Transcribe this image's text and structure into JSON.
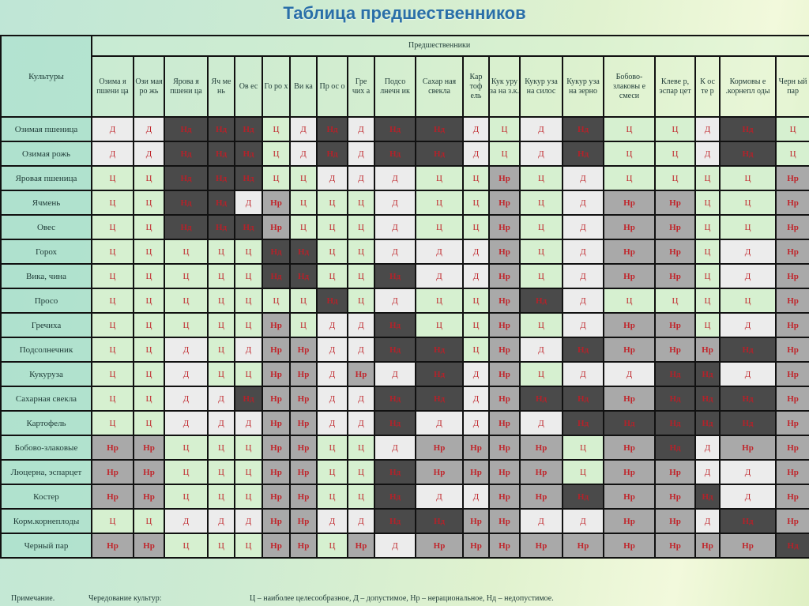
{
  "title": "Таблица предшественников",
  "header": {
    "row_label_header": "Культуры",
    "group_header": "Предшественники",
    "columns": [
      "Озима я пшени ца",
      "Ози мая ро жь",
      "Ярова я пшени ца",
      "Яч ме нь",
      "Ов ес",
      "Го ро х",
      "Ви ка",
      "Пр ос о",
      "Гре чих а",
      "Подсо лнечн ик",
      "Сахар ная свекла",
      "Кар тоф ель",
      "Кук уру за на з.к.",
      "Кукур уза на силос",
      "Кукур уза на зерно",
      "Бобово- злаковы е смеси",
      "Клеве р, эспар цет",
      "К ос те р",
      "Кормовы е .корнепл оды",
      "Черн ый пар"
    ]
  },
  "rows": [
    {
      "crop": "Озимая пшеница",
      "cells": [
        "Д",
        "Д",
        "Нд",
        "Нд",
        "Нд",
        "Ц",
        "Д",
        "Нд",
        "Д",
        "Нд",
        "Нд",
        "Д",
        "Ц",
        "Д",
        "Нд",
        "Ц",
        "Ц",
        "Д",
        "Нд",
        "Ц"
      ]
    },
    {
      "crop": "Озимая рожь",
      "cells": [
        "Д",
        "Д",
        "Нд",
        "Нд",
        "Нд",
        "Ц",
        "Д",
        "Нд",
        "Д",
        "Нд",
        "Нд",
        "Д",
        "Ц",
        "Д",
        "Нд",
        "Ц",
        "Ц",
        "Д",
        "Нд",
        "Ц"
      ]
    },
    {
      "crop": "Яровая пшеница",
      "cells": [
        "Ц",
        "Ц",
        "Нд",
        "Нд",
        "Нд",
        "Ц",
        "Ц",
        "Д",
        "Д",
        "Д",
        "Ц",
        "Ц",
        "Нр",
        "Ц",
        "Д",
        "Ц",
        "Ц",
        "Ц",
        "Ц",
        "Нр"
      ]
    },
    {
      "crop": "Ячмень",
      "cells": [
        "Ц",
        "Ц",
        "Нд",
        "Нд",
        "Д",
        "Нр",
        "Ц",
        "Ц",
        "Ц",
        "Д",
        "Ц",
        "Ц",
        "Нр",
        "Ц",
        "Д",
        "Нр",
        "Нр",
        "Ц",
        "Ц",
        "Нр"
      ]
    },
    {
      "crop": "Овес",
      "cells": [
        "Ц",
        "Ц",
        "Нд",
        "Нд",
        "Нд",
        "Нр",
        "Ц",
        "Ц",
        "Ц",
        "Д",
        "Ц",
        "Ц",
        "Нр",
        "Ц",
        "Д",
        "Нр",
        "Нр",
        "Ц",
        "Ц",
        "Нр"
      ]
    },
    {
      "crop": "Горох",
      "cells": [
        "Ц",
        "Ц",
        "Ц",
        "Ц",
        "Ц",
        "Нд",
        "Нд",
        "Ц",
        "Ц",
        "Д",
        "Д",
        "Д",
        "Нр",
        "Ц",
        "Д",
        "Нр",
        "Нр",
        "Ц",
        "Д",
        "Нр"
      ]
    },
    {
      "crop": "Вика, чина",
      "cells": [
        "Ц",
        "Ц",
        "Ц",
        "Ц",
        "Ц",
        "Нд",
        "Нд",
        "Ц",
        "Ц",
        "Нд",
        "Д",
        "Д",
        "Нр",
        "Ц",
        "Д",
        "Нр",
        "Нр",
        "Ц",
        "Д",
        "Нр"
      ]
    },
    {
      "crop": "Просо",
      "cells": [
        "Ц",
        "Ц",
        "Ц",
        "Ц",
        "Ц",
        "Ц",
        "Ц",
        "Нд",
        "Ц",
        "Д",
        "Ц",
        "Ц",
        "Нр",
        "Нд",
        "Д",
        "Ц",
        "Ц",
        "Ц",
        "Ц",
        "Нр"
      ]
    },
    {
      "crop": "Гречиха",
      "cells": [
        "Ц",
        "Ц",
        "Ц",
        "Ц",
        "Ц",
        "Нр",
        "Ц",
        "Д",
        "Д",
        "Нд",
        "Ц",
        "Ц",
        "Нр",
        "Ц",
        "Д",
        "Нр",
        "Нр",
        "Ц",
        "Д",
        "Нр"
      ]
    },
    {
      "crop": "Подсолнечник",
      "cells": [
        "Ц",
        "Ц",
        "Д",
        "Ц",
        "Д",
        "Нр",
        "Нр",
        "Д",
        "Д",
        "Нд",
        "Нд",
        "Ц",
        "Нр",
        "Д",
        "Нд",
        "Нр",
        "Нр",
        "Нр",
        "Нд",
        "Нр"
      ]
    },
    {
      "crop": "Кукуруза",
      "cells": [
        "Ц",
        "Ц",
        "Д",
        "Ц",
        "Ц",
        "Нр",
        "Нр",
        "Д",
        "Нр",
        "Д",
        "Нд",
        "Д",
        "Нр",
        "Ц",
        "Д",
        "Д",
        "Нд",
        "Нд",
        "Д",
        "Нр"
      ]
    },
    {
      "crop": "Сахарная свекла",
      "cells": [
        "Ц",
        "Ц",
        "Д",
        "Д",
        "Нд",
        "Нр",
        "Нр",
        "Д",
        "Д",
        "Нд",
        "Нд",
        "Д",
        "Нр",
        "Нд",
        "Нд",
        "Нр",
        "Нд",
        "Нд",
        "Нд",
        "Нр"
      ]
    },
    {
      "crop": "Картофель",
      "cells": [
        "Ц",
        "Ц",
        "Д",
        "Д",
        "Д",
        "Нр",
        "Нр",
        "Д",
        "Д",
        "Нд",
        "Д",
        "Д",
        "Нр",
        "Д",
        "Нд",
        "Нд",
        "Нд",
        "Нд",
        "Нд",
        "Нр"
      ]
    },
    {
      "crop": "Бобово-злаковые",
      "cells": [
        "Нр",
        "Нр",
        "Ц",
        "Ц",
        "Ц",
        "Нр",
        "Нр",
        "Ц",
        "Ц",
        "Д",
        "Нр",
        "Нр",
        "Нр",
        "Нр",
        "Ц",
        "Нр",
        "Нд",
        "Д",
        "Нр",
        "Нр"
      ]
    },
    {
      "crop": "Люцерна, эспарцет",
      "cells": [
        "Нр",
        "Нр",
        "Ц",
        "Ц",
        "Ц",
        "Нр",
        "Нр",
        "Ц",
        "Ц",
        "Нд",
        "Нр",
        "Нр",
        "Нр",
        "Нр",
        "Ц",
        "Нр",
        "Нр",
        "Д",
        "Д",
        "Нр"
      ]
    },
    {
      "crop": "Костер",
      "cells": [
        "Нр",
        "Нр",
        "Ц",
        "Ц",
        "Ц",
        "Нр",
        "Нр",
        "Ц",
        "Ц",
        "Нд",
        "Д",
        "Д",
        "Нр",
        "Нр",
        "Нд",
        "Нр",
        "Нр",
        "Нд",
        "Д",
        "Нр"
      ]
    },
    {
      "crop": "Корм.корнеплоды",
      "cells": [
        "Ц",
        "Ц",
        "Д",
        "Д",
        "Д",
        "Нр",
        "Нр",
        "Д",
        "Д",
        "Нд",
        "Нд",
        "Нр",
        "Нр",
        "Д",
        "Д",
        "Нр",
        "Нр",
        "Д",
        "Нд",
        "Нр"
      ]
    },
    {
      "crop": "Черный пар",
      "cells": [
        "Нр",
        "Нр",
        "Ц",
        "Ц",
        "Ц",
        "Нр",
        "Нр",
        "Ц",
        "Нр",
        "Д",
        "Нр",
        "Нр",
        "Нр",
        "Нр",
        "Нр",
        "Нр",
        "Нр",
        "Нр",
        "Нр",
        "Нд"
      ]
    }
  ],
  "legend_colors": {
    "Ц": "#d6f0d0",
    "Д": "#ececec",
    "Нр": "#a9a9a9",
    "Нд": "#4a4a4a",
    "text": "#c0262c"
  },
  "footnote": {
    "label": "Примечание.",
    "subject": "Чередование культур:",
    "legend": "Ц – наиболее целесообразное, Д – допустимое, Нр – нерациональное, Нд – недопустимое."
  }
}
